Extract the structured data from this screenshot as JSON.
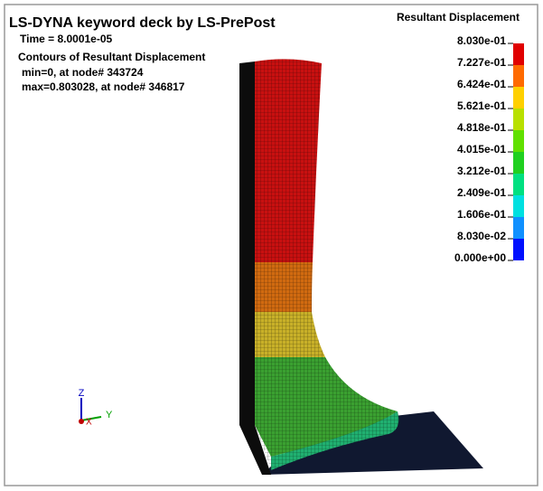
{
  "header": {
    "title": "LS-DYNA keyword deck by LS-PrePost",
    "time": "Time =  8.0001e-05",
    "contour_title": "Contours of Resultant Displacement",
    "min": "min=0, at node# 343724",
    "max": "max=0.803028, at node# 346817"
  },
  "legend": {
    "title": "Resultant Displacement",
    "labels": [
      "8.030e-01",
      "7.227e-01",
      "6.424e-01",
      "5.621e-01",
      "4.818e-01",
      "4.015e-01",
      "3.212e-01",
      "2.409e-01",
      "1.606e-01",
      "8.030e-02",
      "0.000e+00"
    ],
    "colors": [
      "#e00000",
      "#ff6a00",
      "#ffd000",
      "#b8e000",
      "#60e000",
      "#20d020",
      "#00e080",
      "#00e0e0",
      "#1090ff",
      "#0010ff"
    ]
  },
  "triad": {
    "z": "Z",
    "y": "Y",
    "x": "X"
  }
}
